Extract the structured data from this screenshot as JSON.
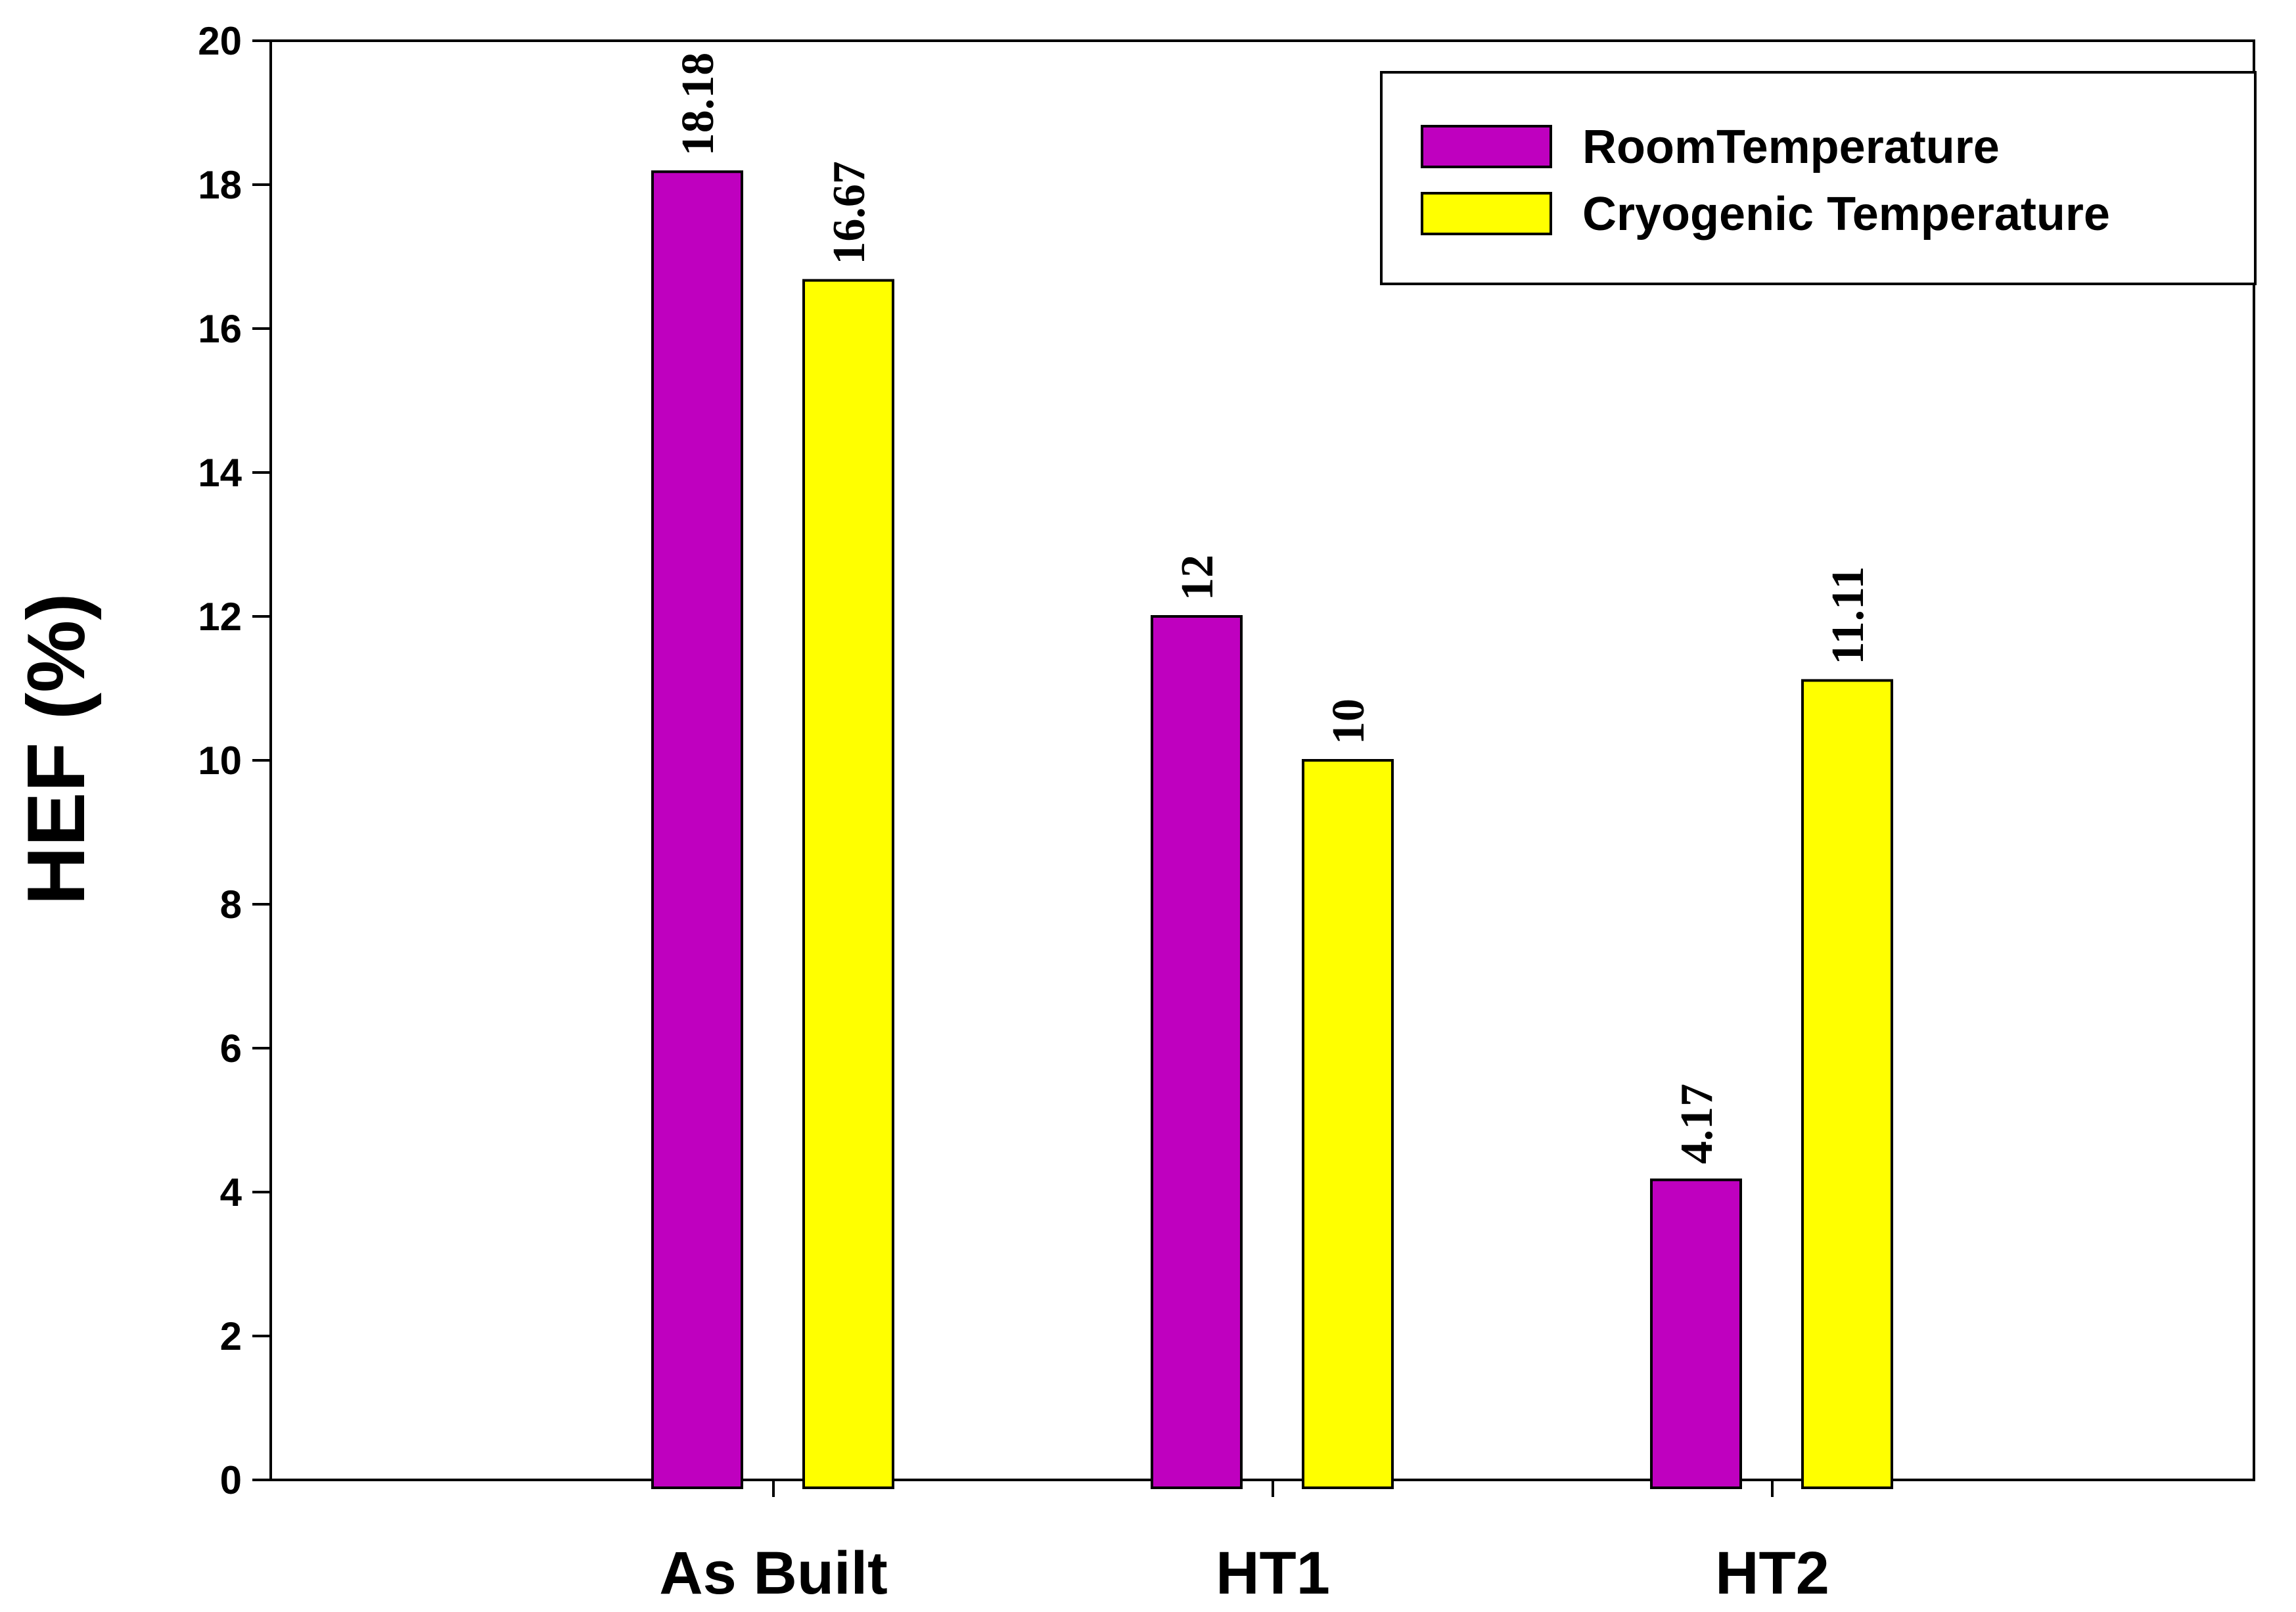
{
  "chart_data": {
    "type": "bar",
    "title": "",
    "xlabel": "",
    "ylabel": "HEF (%)",
    "ylim": [
      0,
      20
    ],
    "yticks": [
      0,
      2,
      4,
      6,
      8,
      10,
      12,
      14,
      16,
      18,
      20
    ],
    "categories": [
      "As Built",
      "HT1",
      "HT2"
    ],
    "series": [
      {
        "name": "RoomTemperature",
        "color": "#BF00BF",
        "values": [
          18.18,
          12,
          4.17
        ],
        "labels": [
          "18.18",
          "12",
          "4.17"
        ]
      },
      {
        "name": "Cryogenic Temperature",
        "color": "#FFFF00",
        "values": [
          16.67,
          10,
          11.11
        ],
        "labels": [
          "16.67",
          "10",
          "11.11"
        ]
      }
    ],
    "legend": "top-right",
    "grid": false
  }
}
